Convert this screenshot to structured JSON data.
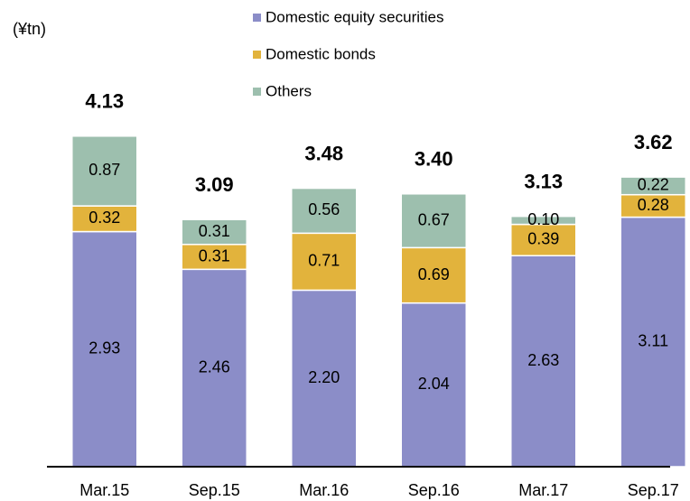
{
  "chart_data": {
    "type": "stacked_bar",
    "unit_label": "(¥tn)",
    "categories": [
      "Mar.15",
      "Sep.15",
      "Mar.16",
      "Sep.16",
      "Mar.17",
      "Sep.17"
    ],
    "series": [
      {
        "name": "Domestic equity securities",
        "color": "#8b8dc8",
        "values": [
          2.93,
          2.46,
          2.2,
          2.04,
          2.63,
          3.11
        ],
        "value_labels": [
          "2.93",
          "2.46",
          "2.20",
          "2.04",
          "2.63",
          "3.11"
        ]
      },
      {
        "name": "Domestic bonds",
        "color": "#e2b33c",
        "values": [
          0.32,
          0.31,
          0.71,
          0.69,
          0.39,
          0.28
        ],
        "value_labels": [
          "0.32",
          "0.31",
          "0.71",
          "0.69",
          "0.39",
          "0.28"
        ]
      },
      {
        "name": "Others",
        "color": "#9dbfae",
        "values": [
          0.87,
          0.31,
          0.56,
          0.67,
          0.1,
          0.22
        ],
        "value_labels": [
          "0.87",
          "0.31",
          "0.56",
          "0.67",
          "0.10",
          "0.22"
        ]
      }
    ],
    "totals": [
      4.13,
      3.09,
      3.48,
      3.4,
      3.13,
      3.62
    ],
    "total_labels": [
      "4.13",
      "3.09",
      "3.48",
      "3.40",
      "3.13",
      "3.62"
    ],
    "ylim": [
      0,
      4.5
    ]
  }
}
